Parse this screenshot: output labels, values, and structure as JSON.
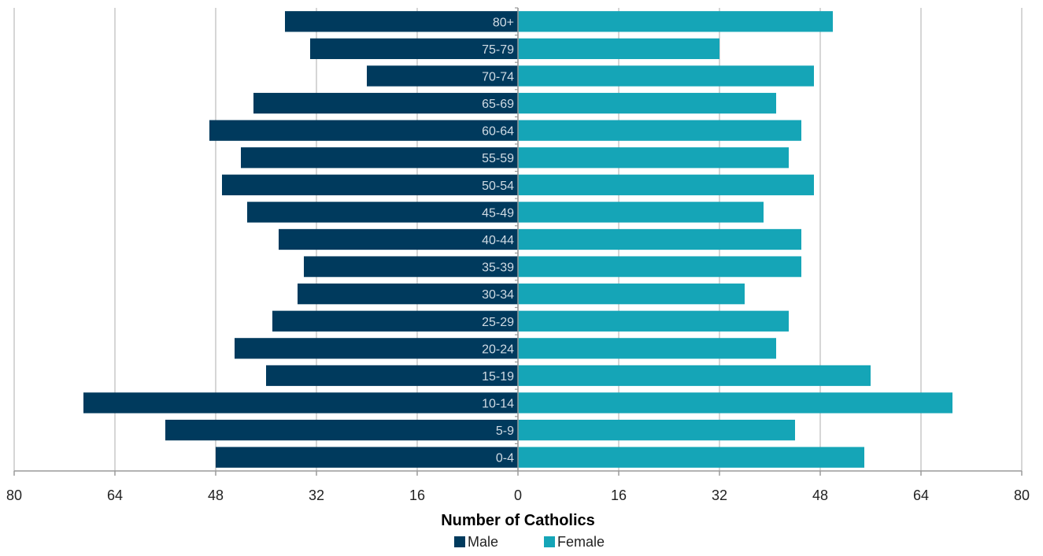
{
  "chart_data": {
    "type": "bar",
    "orientation": "horizontal",
    "layout": "population-pyramid",
    "xlabel": "Number of Catholics",
    "xlim": [
      -80,
      80
    ],
    "xticks": [
      -80,
      -64,
      -48,
      -32,
      -16,
      0,
      16,
      32,
      48,
      64,
      80
    ],
    "xtick_labels": [
      "80",
      "64",
      "48",
      "32",
      "16",
      "0",
      "16",
      "32",
      "48",
      "64",
      "80"
    ],
    "grid": "vertical",
    "legend_position": "bottom",
    "categories": [
      "0-4",
      "5-9",
      "10-14",
      "15-19",
      "20-24",
      "25-29",
      "30-34",
      "35-39",
      "40-44",
      "45-49",
      "50-54",
      "55-59",
      "60-64",
      "65-69",
      "70-74",
      "75-79",
      "80+"
    ],
    "series": [
      {
        "name": "Male",
        "color": "#003a5d",
        "values": [
          48,
          56,
          69,
          40,
          45,
          39,
          35,
          34,
          38,
          43,
          47,
          44,
          49,
          42,
          24,
          33,
          37
        ]
      },
      {
        "name": "Female",
        "color": "#15a5b7",
        "values": [
          55,
          44,
          69,
          56,
          41,
          43,
          36,
          45,
          45,
          39,
          47,
          43,
          45,
          41,
          47,
          32,
          50
        ]
      }
    ]
  }
}
